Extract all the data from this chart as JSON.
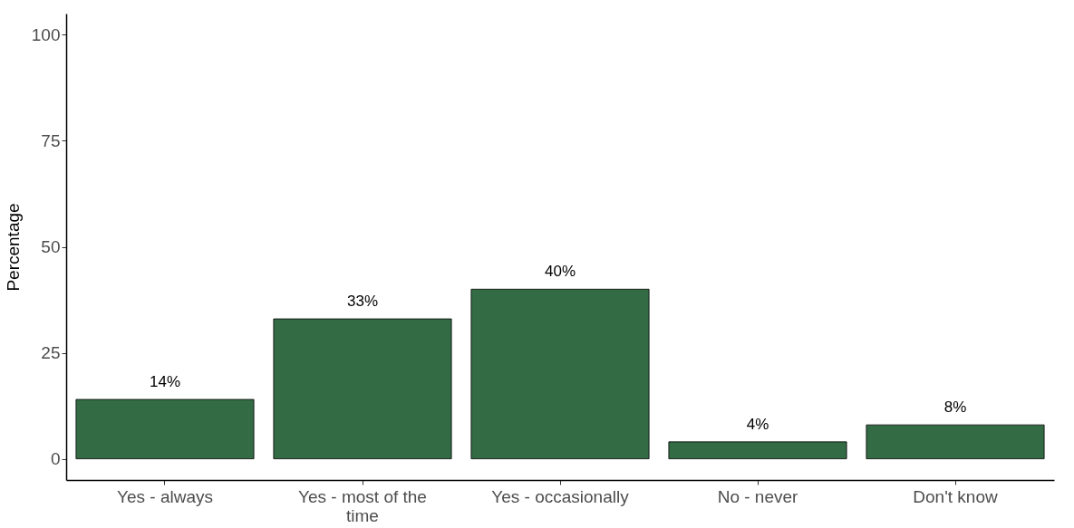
{
  "chart_data": {
    "type": "bar",
    "ylabel": "Percentage",
    "categories": [
      "Yes - always",
      "Yes - most of the time",
      "Yes - occasionally",
      "No - never",
      "Don't know"
    ],
    "values": [
      14,
      33,
      40,
      4,
      8
    ],
    "value_labels": [
      "14%",
      "33%",
      "40%",
      "4%",
      "8%"
    ],
    "color": "#336b45",
    "ylim": [
      -5,
      105
    ],
    "yticks": [
      0,
      25,
      50,
      75,
      100
    ],
    "grid": false
  }
}
